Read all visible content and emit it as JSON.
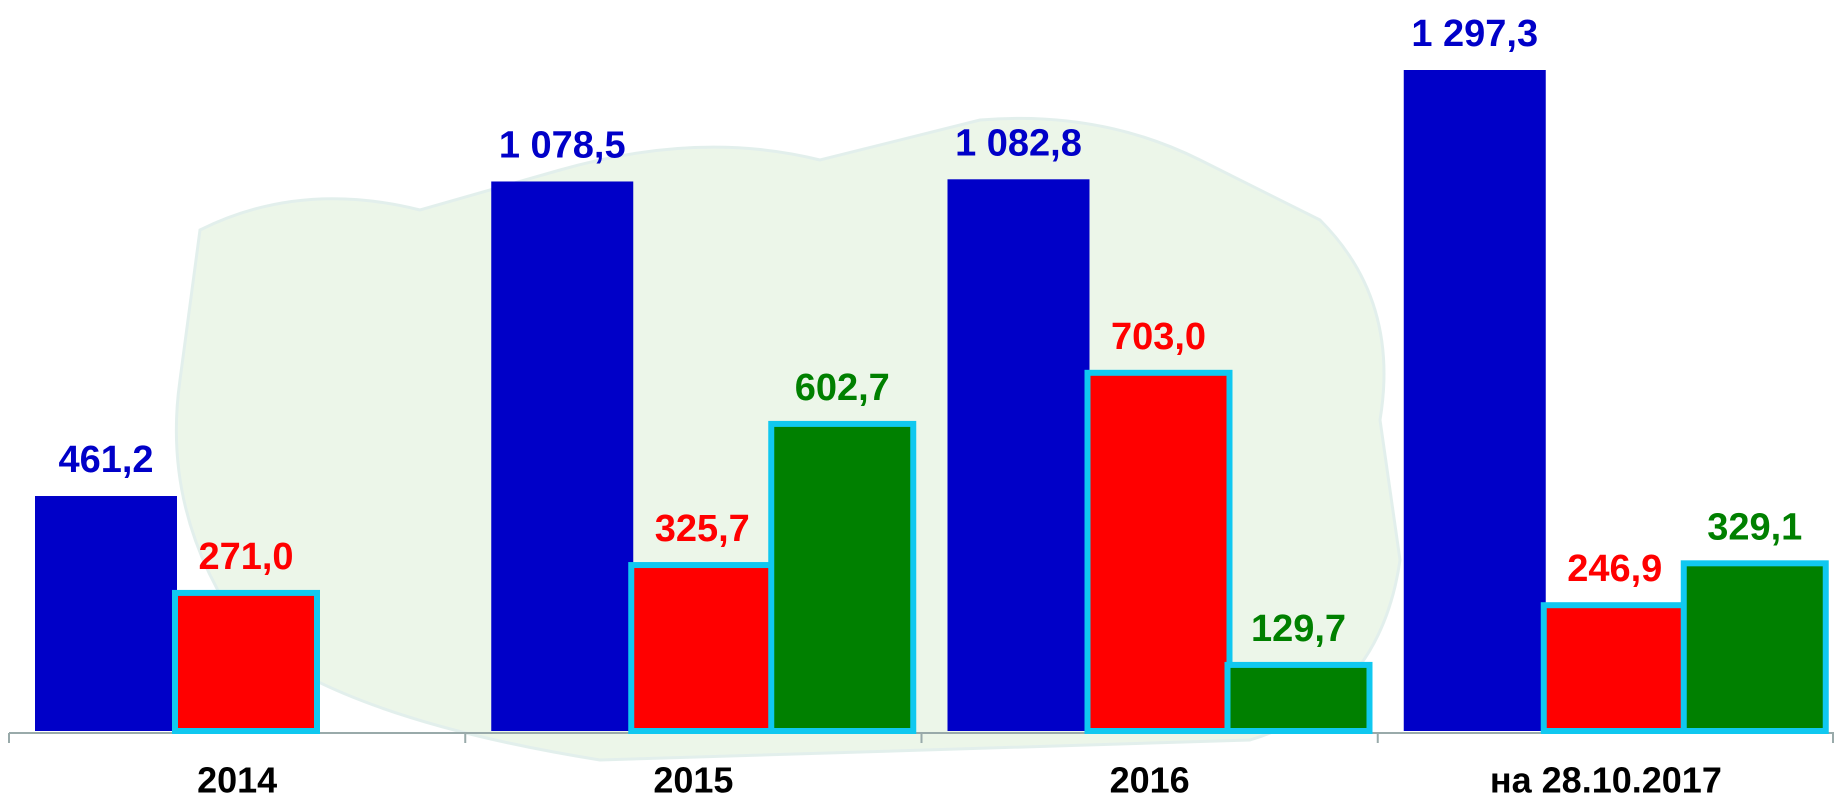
{
  "chart_data": {
    "type": "bar",
    "categories": [
      "2014",
      "2015",
      "2016",
      "на 28.10.2017"
    ],
    "series": [
      {
        "color": "#0000c8",
        "values": [
          461.2,
          1078.5,
          1082.8,
          1297.3
        ],
        "value_labels": [
          "461,2",
          "1 078,5",
          "1 082,8",
          "1 297,3"
        ]
      },
      {
        "color": "#ff0000",
        "values": [
          271.0,
          325.7,
          703.0,
          246.9
        ],
        "value_labels": [
          "271,0",
          "325,7",
          "703,0",
          "246,9"
        ]
      },
      {
        "color": "#008000",
        "values": [
          null,
          602.7,
          129.7,
          329.1
        ],
        "value_labels": [
          null,
          "602,7",
          "129,7",
          "329,1"
        ]
      }
    ]
  }
}
